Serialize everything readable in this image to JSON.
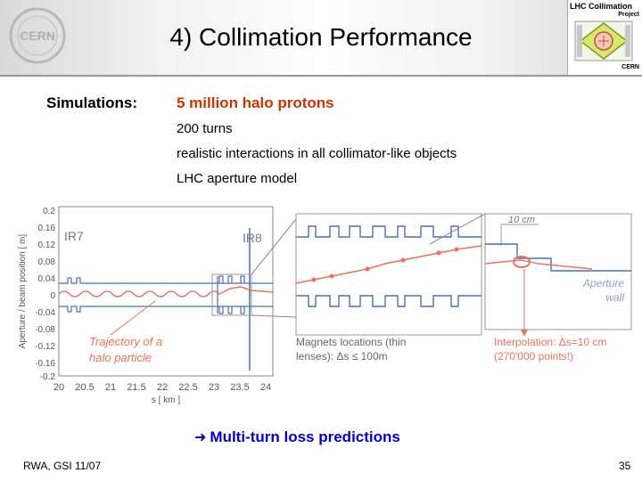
{
  "header": {
    "title": "4) Collimation Performance",
    "cern_logo": "CERN",
    "project_logo": {
      "line1": "LHC Collimation",
      "line2": "Project",
      "line3": "CERN"
    }
  },
  "content": {
    "label": "Simulations:",
    "highlight": "5 million halo protons",
    "bullets": [
      "200 turns",
      "realistic interactions in all collimator-like objects",
      "LHC aperture model"
    ]
  },
  "figure": {
    "y_ticks": [
      "0.2",
      "0.16",
      "0.12",
      "0.08",
      "0.04",
      "0",
      "-0.04",
      "-0.08",
      "-0.12",
      "-0.16",
      "-0.2"
    ],
    "x_ticks": [
      "20",
      "20.5",
      "21",
      "21.5",
      "22",
      "22.5",
      "23",
      "23.5",
      "24"
    ],
    "y_label": "Aperture / beam position [ m]",
    "x_label": "s [ km ]",
    "ir7": "IR7",
    "ir8": "IR8",
    "trajectory_line1": "Trajectory of a",
    "trajectory_line2": "halo particle",
    "zoom_scale": "10 cm",
    "aperture_line1": "Aperture",
    "aperture_line2": "wall",
    "magnets_line1": "Magnets locations (thin",
    "magnets_line2": "lenses): Δs ≤ 100m",
    "interp_line1": "Interpolation: Δs=10 cm",
    "interp_line2": "(270'000 points!)"
  },
  "result": "Multi-turn loss predictions",
  "result_arrow": "➜",
  "footer": {
    "left": "RWA, GSI 11/07",
    "right": "35"
  },
  "colors": {
    "highlight": "#cc3300",
    "result": "#0000cc",
    "trajectory": "#e8735a",
    "aperture": "#4a6fb5"
  }
}
